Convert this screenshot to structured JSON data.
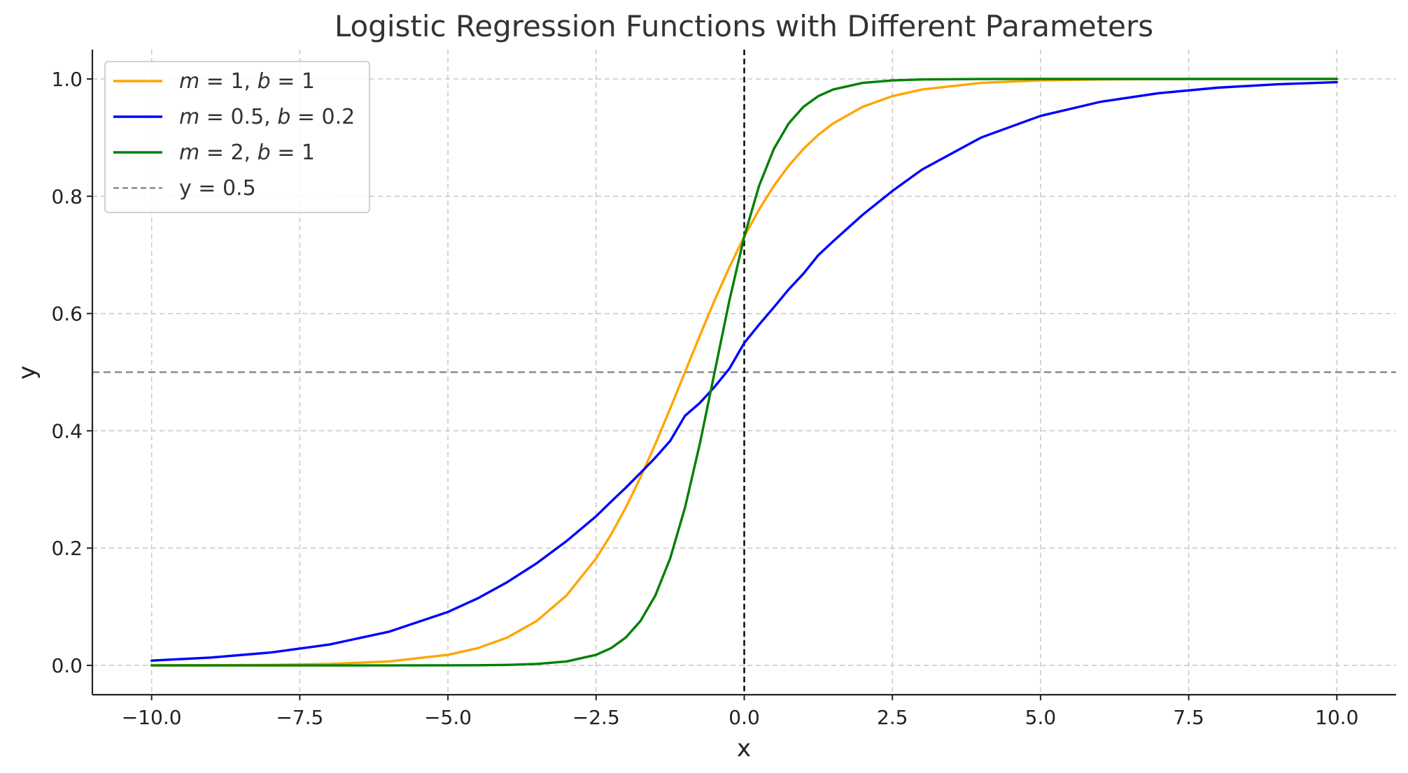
{
  "chart_data": {
    "type": "line",
    "title": "Logistic Regression Functions with Different Parameters",
    "xlabel": "x",
    "ylabel": "y",
    "xlim": [
      -11,
      11
    ],
    "ylim": [
      -0.05,
      1.05
    ],
    "x_ticks": [
      -10.0,
      -7.5,
      -5.0,
      -2.5,
      0.0,
      2.5,
      5.0,
      7.5,
      10.0
    ],
    "x_tick_labels": [
      "−10.0",
      "−7.5",
      "−5.0",
      "−2.5",
      "0.0",
      "2.5",
      "5.0",
      "7.5",
      "10.0"
    ],
    "y_ticks": [
      0.0,
      0.2,
      0.4,
      0.6,
      0.8,
      1.0
    ],
    "y_tick_labels": [
      "0.0",
      "0.2",
      "0.4",
      "0.6",
      "0.8",
      "1.0"
    ],
    "grid": true,
    "legend_position": "top-left",
    "x": [
      -10,
      -9,
      -8,
      -7,
      -6,
      -5,
      -4.5,
      -4,
      -3.5,
      -3,
      -2.5,
      -2.25,
      -2,
      -1.75,
      -1.5,
      -1.25,
      -1,
      -0.75,
      -0.5,
      -0.25,
      0,
      0.25,
      0.5,
      0.75,
      1,
      1.25,
      1.5,
      2,
      2.5,
      3,
      4,
      5,
      6,
      7,
      8,
      9,
      10
    ],
    "series": [
      {
        "name": "m = 1, b = 1",
        "name_parts": [
          {
            "text": "m",
            "italic": true
          },
          {
            "text": " = 1, ",
            "italic": false
          },
          {
            "text": "b",
            "italic": true
          },
          {
            "text": " = 1",
            "italic": false
          }
        ],
        "color": "#FFA500",
        "values": [
          0.0001,
          0.0003,
          0.0009,
          0.0025,
          0.0067,
          0.018,
          0.0293,
          0.0474,
          0.0759,
          0.1192,
          0.1824,
          0.2227,
          0.2689,
          0.3208,
          0.3775,
          0.4378,
          0.5,
          0.5622,
          0.6225,
          0.6792,
          0.7311,
          0.7773,
          0.8176,
          0.8519,
          0.8808,
          0.9047,
          0.9241,
          0.9526,
          0.9707,
          0.982,
          0.9933,
          0.9975,
          0.9991,
          0.9997,
          0.9999,
          1.0,
          1.0
        ]
      },
      {
        "name": "m = 0.5, b = 0.2",
        "name_parts": [
          {
            "text": "m",
            "italic": true
          },
          {
            "text": " = 0.5, ",
            "italic": false
          },
          {
            "text": "b",
            "italic": true
          },
          {
            "text": " = 0.2",
            "italic": false
          }
        ],
        "color": "#0000FF",
        "values": [
          0.0082,
          0.0134,
          0.0219,
          0.0356,
          0.0573,
          0.0911,
          0.1142,
          0.1419,
          0.1743,
          0.2119,
          0.2543,
          0.2789,
          0.3029,
          0.3283,
          0.3543,
          0.3828,
          0.4256,
          0.4475,
          0.475,
          0.5061,
          0.5498,
          0.581,
          0.6106,
          0.6411,
          0.6681,
          0.6995,
          0.7231,
          0.7685,
          0.8089,
          0.8455,
          0.9002,
          0.937,
          0.9608,
          0.9758,
          0.9852,
          0.9909,
          0.9945
        ]
      },
      {
        "name": "m = 2, b = 1",
        "name_parts": [
          {
            "text": "m",
            "italic": true
          },
          {
            "text": " = 2, ",
            "italic": false
          },
          {
            "text": "b",
            "italic": true
          },
          {
            "text": " = 1",
            "italic": false
          }
        ],
        "color": "#008000",
        "values": [
          0.0,
          0.0,
          0.0,
          0.0,
          0.0,
          0.0001,
          0.0003,
          0.0009,
          0.0025,
          0.0067,
          0.018,
          0.0293,
          0.0474,
          0.0759,
          0.1192,
          0.1824,
          0.2689,
          0.3775,
          0.5,
          0.6225,
          0.7311,
          0.8176,
          0.8808,
          0.9241,
          0.9526,
          0.9707,
          0.982,
          0.9933,
          0.9975,
          0.9991,
          0.9999,
          1.0,
          1.0,
          1.0,
          1.0,
          1.0,
          1.0
        ]
      }
    ],
    "reference_lines": [
      {
        "name": "y = 0.5",
        "orientation": "horizontal",
        "value": 0.5,
        "color": "#808080",
        "style": "dashed",
        "in_legend": true
      },
      {
        "name": "",
        "orientation": "vertical",
        "value": 0,
        "color": "#000000",
        "style": "dashed",
        "in_legend": false
      }
    ]
  }
}
